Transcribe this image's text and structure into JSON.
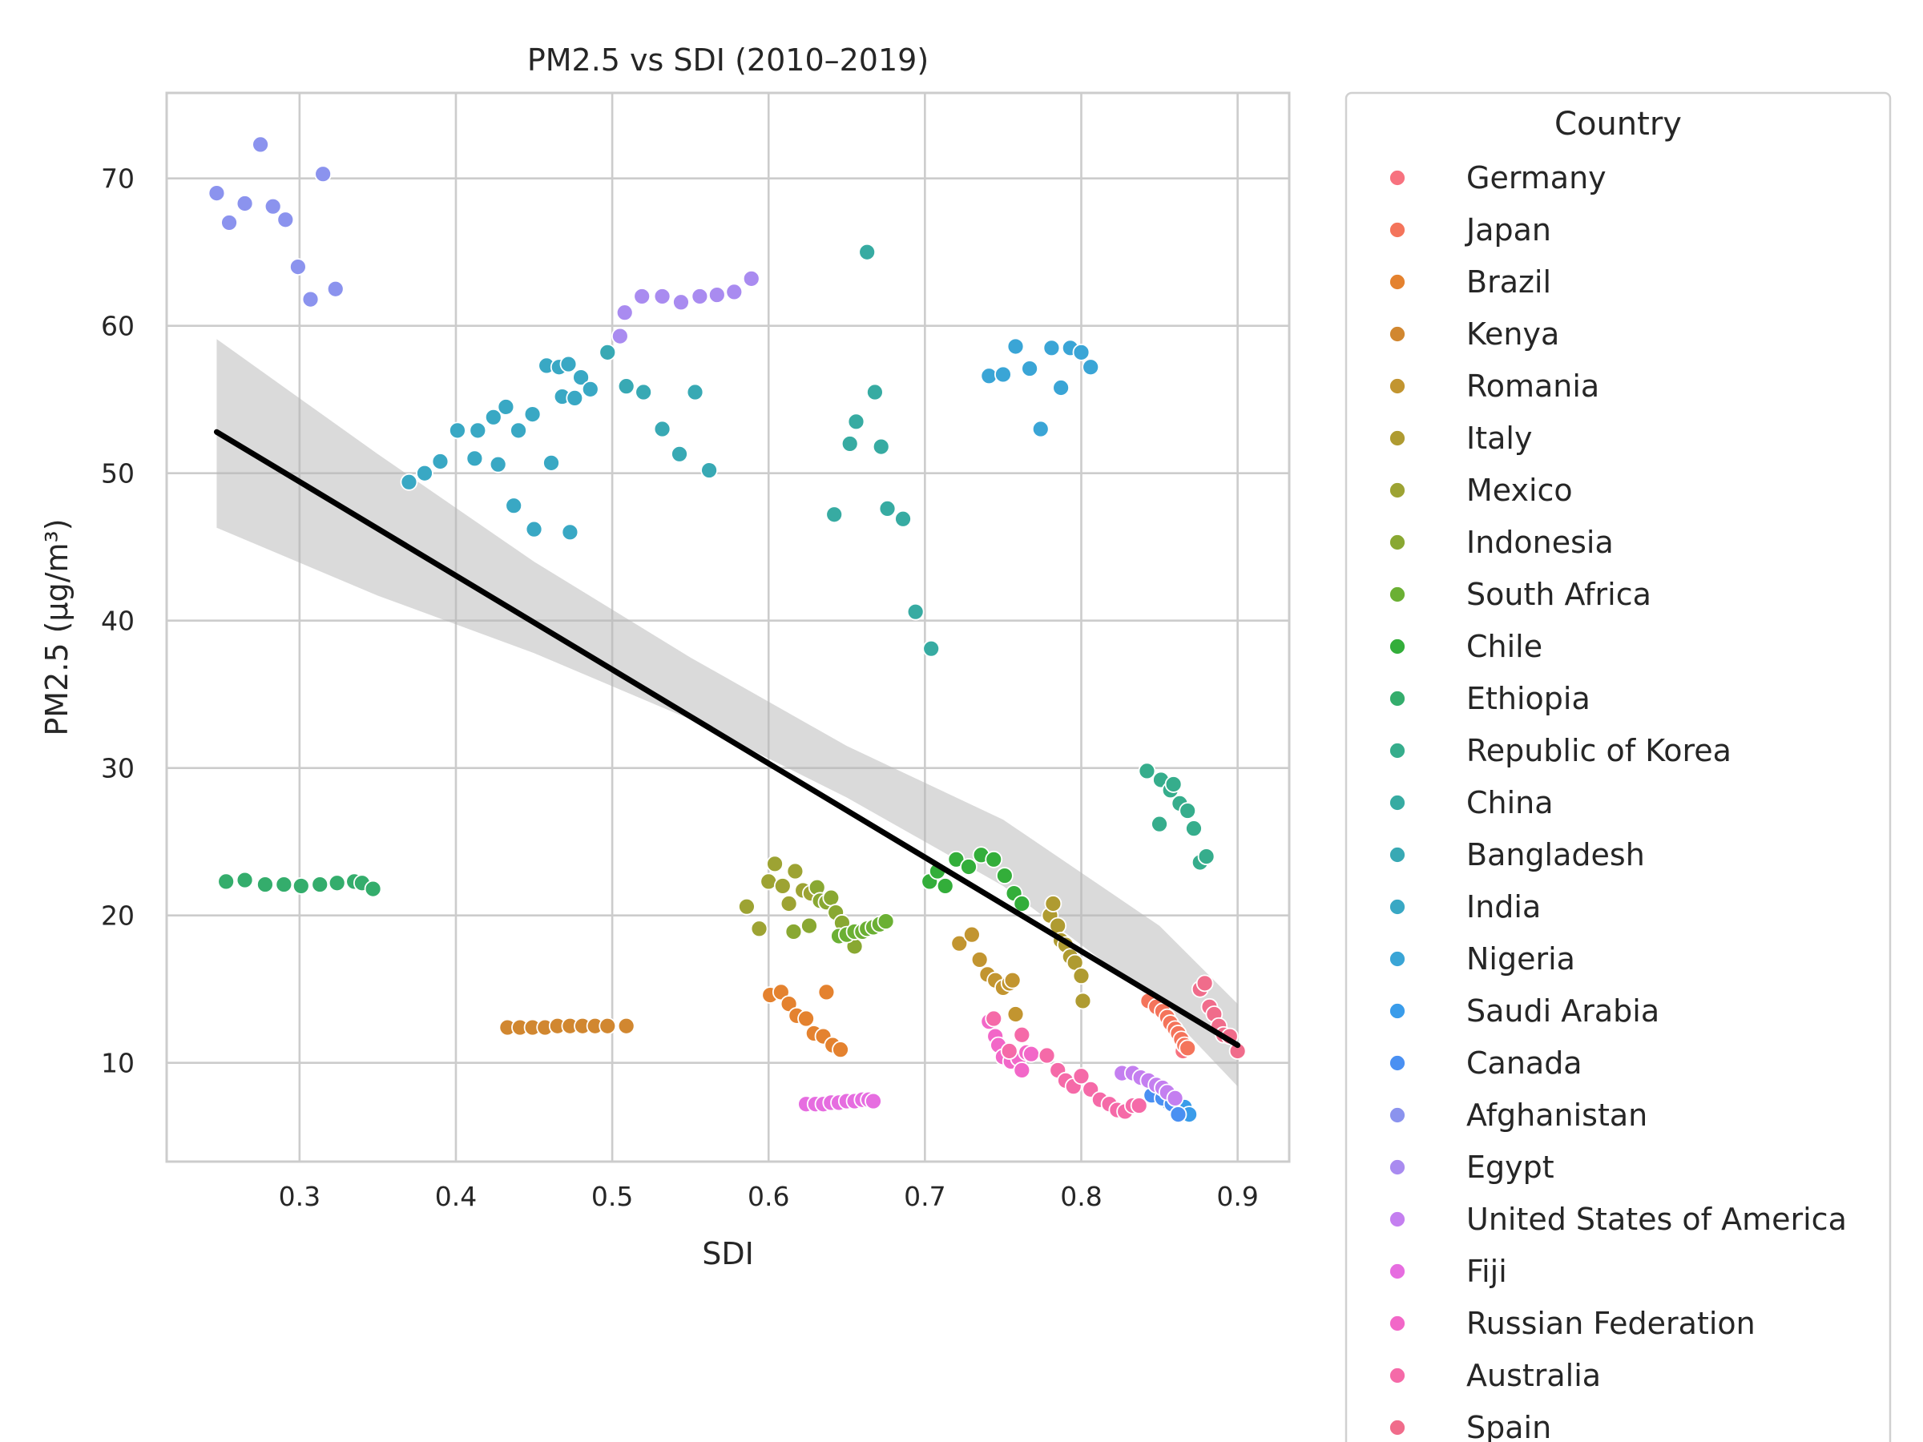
{
  "chart_data": {
    "type": "scatter",
    "title": "PM2.5 vs SDI (2010–2019)",
    "xlabel": "SDI",
    "ylabel": "PM2.5 (µg/m³)",
    "xlim": [
      0.215,
      0.933
    ],
    "ylim": [
      3.3,
      75.8
    ],
    "x_ticks": [
      0.3,
      0.4,
      0.5,
      0.6,
      0.7,
      0.8,
      0.9
    ],
    "x_tick_labels": [
      "0.3",
      "0.4",
      "0.5",
      "0.6",
      "0.7",
      "0.8",
      "0.9"
    ],
    "y_ticks": [
      10,
      20,
      30,
      40,
      50,
      60,
      70
    ],
    "y_tick_labels": [
      "10",
      "20",
      "30",
      "40",
      "50",
      "60",
      "70"
    ],
    "grid": true,
    "legend": {
      "title": "Country",
      "placement": "outside-right"
    },
    "regression": {
      "line": [
        [
          0.247,
          52.8
        ],
        [
          0.9,
          11.2
        ]
      ],
      "ci_band": [
        [
          0.247,
          46.3,
          59.1
        ],
        [
          0.35,
          41.7,
          51.3
        ],
        [
          0.45,
          37.8,
          44.0
        ],
        [
          0.55,
          33.3,
          37.5
        ],
        [
          0.65,
          28.0,
          31.5
        ],
        [
          0.75,
          22.0,
          26.5
        ],
        [
          0.85,
          14.0,
          19.3
        ],
        [
          0.9,
          8.4,
          14.0
        ]
      ]
    },
    "series": [
      {
        "name": "Germany",
        "color": "#f7727f",
        "points": [
          [
            0.865,
            10.8
          ],
          [
            0.868,
            11.0
          ]
        ]
      },
      {
        "name": "Japan",
        "color": "#f4745b",
        "points": [
          [
            0.843,
            14.2
          ],
          [
            0.848,
            13.8
          ],
          [
            0.852,
            13.5
          ],
          [
            0.855,
            13.1
          ],
          [
            0.857,
            12.7
          ],
          [
            0.86,
            12.3
          ],
          [
            0.862,
            12.0
          ],
          [
            0.864,
            11.6
          ],
          [
            0.866,
            11.2
          ],
          [
            0.868,
            11.0
          ]
        ]
      },
      {
        "name": "Brazil",
        "color": "#e4822f",
        "points": [
          [
            0.601,
            14.6
          ],
          [
            0.608,
            14.8
          ],
          [
            0.613,
            14.0
          ],
          [
            0.618,
            13.2
          ],
          [
            0.624,
            13.0
          ],
          [
            0.629,
            12.0
          ],
          [
            0.635,
            11.8
          ],
          [
            0.637,
            14.8
          ],
          [
            0.641,
            11.2
          ],
          [
            0.646,
            10.9
          ]
        ]
      },
      {
        "name": "Kenya",
        "color": "#d18730",
        "points": [
          [
            0.433,
            12.4
          ],
          [
            0.441,
            12.4
          ],
          [
            0.449,
            12.4
          ],
          [
            0.457,
            12.4
          ],
          [
            0.465,
            12.5
          ],
          [
            0.473,
            12.5
          ],
          [
            0.481,
            12.5
          ],
          [
            0.489,
            12.5
          ],
          [
            0.497,
            12.5
          ],
          [
            0.509,
            12.5
          ]
        ]
      },
      {
        "name": "Romania",
        "color": "#c29530",
        "points": [
          [
            0.722,
            18.1
          ],
          [
            0.73,
            18.7
          ],
          [
            0.735,
            17.0
          ],
          [
            0.74,
            16.0
          ],
          [
            0.745,
            15.6
          ],
          [
            0.75,
            15.1
          ],
          [
            0.754,
            15.4
          ],
          [
            0.756,
            15.6
          ],
          [
            0.758,
            13.3
          ]
        ]
      },
      {
        "name": "Italy",
        "color": "#af9b31",
        "points": [
          [
            0.78,
            20.0
          ],
          [
            0.782,
            20.8
          ],
          [
            0.785,
            19.3
          ],
          [
            0.787,
            18.3
          ],
          [
            0.79,
            18.0
          ],
          [
            0.793,
            17.2
          ],
          [
            0.796,
            16.8
          ],
          [
            0.8,
            15.9
          ],
          [
            0.801,
            14.2
          ]
        ]
      },
      {
        "name": "Mexico",
        "color": "#9da333",
        "points": [
          [
            0.586,
            20.6
          ],
          [
            0.594,
            19.1
          ],
          [
            0.6,
            22.3
          ],
          [
            0.604,
            23.5
          ],
          [
            0.609,
            22.0
          ],
          [
            0.613,
            20.8
          ],
          [
            0.617,
            23.0
          ],
          [
            0.622,
            21.7
          ],
          [
            0.627,
            21.5
          ]
        ]
      },
      {
        "name": "Indonesia",
        "color": "#89a832",
        "points": [
          [
            0.616,
            18.9
          ],
          [
            0.626,
            19.3
          ],
          [
            0.631,
            21.9
          ],
          [
            0.633,
            21.0
          ],
          [
            0.637,
            20.9
          ],
          [
            0.64,
            21.2
          ],
          [
            0.643,
            20.2
          ],
          [
            0.647,
            19.5
          ],
          [
            0.651,
            18.6
          ],
          [
            0.655,
            17.9
          ]
        ]
      },
      {
        "name": "South Africa",
        "color": "#6bb034",
        "points": [
          [
            0.645,
            18.6
          ],
          [
            0.65,
            18.7
          ],
          [
            0.655,
            18.9
          ],
          [
            0.66,
            18.9
          ],
          [
            0.663,
            19.1
          ],
          [
            0.667,
            19.2
          ],
          [
            0.671,
            19.4
          ],
          [
            0.675,
            19.6
          ]
        ]
      },
      {
        "name": "Chile",
        "color": "#33ae3a",
        "points": [
          [
            0.703,
            22.3
          ],
          [
            0.708,
            23.0
          ],
          [
            0.713,
            22.0
          ],
          [
            0.72,
            23.8
          ],
          [
            0.728,
            23.3
          ],
          [
            0.736,
            24.1
          ],
          [
            0.744,
            23.8
          ],
          [
            0.751,
            22.7
          ],
          [
            0.757,
            21.5
          ],
          [
            0.762,
            20.8
          ]
        ]
      },
      {
        "name": "Ethiopia",
        "color": "#34ad6c",
        "points": [
          [
            0.253,
            22.3
          ],
          [
            0.265,
            22.4
          ],
          [
            0.278,
            22.1
          ],
          [
            0.29,
            22.1
          ],
          [
            0.301,
            22.0
          ],
          [
            0.313,
            22.1
          ],
          [
            0.324,
            22.2
          ],
          [
            0.335,
            22.3
          ],
          [
            0.34,
            22.2
          ],
          [
            0.347,
            21.8
          ]
        ]
      },
      {
        "name": "Republic of Korea",
        "color": "#36ad8c",
        "points": [
          [
            0.842,
            29.8
          ],
          [
            0.85,
            26.2
          ],
          [
            0.851,
            29.2
          ],
          [
            0.857,
            28.5
          ],
          [
            0.859,
            28.9
          ],
          [
            0.863,
            27.6
          ],
          [
            0.868,
            27.1
          ],
          [
            0.872,
            25.9
          ],
          [
            0.876,
            23.6
          ],
          [
            0.88,
            24.0
          ]
        ]
      },
      {
        "name": "China",
        "color": "#37aba2",
        "points": [
          [
            0.642,
            47.2
          ],
          [
            0.652,
            52.0
          ],
          [
            0.656,
            53.5
          ],
          [
            0.663,
            65.0
          ],
          [
            0.668,
            55.5
          ],
          [
            0.672,
            51.8
          ],
          [
            0.676,
            47.6
          ],
          [
            0.686,
            46.9
          ],
          [
            0.694,
            40.6
          ],
          [
            0.704,
            38.1
          ]
        ]
      },
      {
        "name": "Bangladesh",
        "color": "#38a9b4",
        "points": [
          [
            0.497,
            58.2
          ],
          [
            0.509,
            55.9
          ],
          [
            0.52,
            55.5
          ],
          [
            0.532,
            53.0
          ],
          [
            0.543,
            51.3
          ],
          [
            0.553,
            55.5
          ],
          [
            0.562,
            50.2
          ]
        ]
      },
      {
        "name": "India",
        "color": "#39a8c4",
        "points": [
          [
            0.37,
            49.4
          ],
          [
            0.38,
            50.0
          ],
          [
            0.39,
            50.8
          ],
          [
            0.401,
            52.9
          ],
          [
            0.412,
            51.0
          ],
          [
            0.414,
            52.9
          ],
          [
            0.424,
            53.8
          ],
          [
            0.427,
            50.6
          ],
          [
            0.432,
            54.5
          ],
          [
            0.437,
            47.8
          ],
          [
            0.44,
            52.9
          ],
          [
            0.449,
            54.0
          ],
          [
            0.45,
            46.2
          ],
          [
            0.458,
            57.3
          ],
          [
            0.461,
            50.7
          ],
          [
            0.466,
            57.2
          ],
          [
            0.468,
            55.2
          ],
          [
            0.472,
            57.4
          ],
          [
            0.473,
            46.0
          ],
          [
            0.476,
            55.1
          ],
          [
            0.48,
            56.5
          ],
          [
            0.486,
            55.7
          ]
        ]
      },
      {
        "name": "Nigeria",
        "color": "#3aa5d6",
        "points": [
          [
            0.741,
            56.6
          ],
          [
            0.75,
            56.7
          ],
          [
            0.758,
            58.6
          ],
          [
            0.767,
            57.1
          ],
          [
            0.774,
            53.0
          ],
          [
            0.781,
            58.5
          ],
          [
            0.787,
            55.8
          ],
          [
            0.793,
            58.5
          ],
          [
            0.8,
            58.2
          ],
          [
            0.806,
            57.2
          ]
        ]
      },
      {
        "name": "Saudi Arabia",
        "color": "#3a9cea",
        "points": [
          [
            0.848,
            7.8
          ],
          [
            0.852,
            7.6
          ],
          [
            0.856,
            7.3
          ],
          [
            0.86,
            7.0
          ],
          [
            0.866,
            7.0
          ],
          [
            0.869,
            6.5
          ]
        ]
      },
      {
        "name": "Canada",
        "color": "#4a90f2",
        "points": [
          [
            0.845,
            7.8
          ],
          [
            0.852,
            7.6
          ],
          [
            0.858,
            7.2
          ],
          [
            0.862,
            6.5
          ]
        ]
      },
      {
        "name": "Afghanistan",
        "color": "#8b93ee",
        "points": [
          [
            0.247,
            69.0
          ],
          [
            0.255,
            67.0
          ],
          [
            0.265,
            68.3
          ],
          [
            0.275,
            72.3
          ],
          [
            0.283,
            68.1
          ],
          [
            0.291,
            67.2
          ],
          [
            0.299,
            64.0
          ],
          [
            0.307,
            61.8
          ],
          [
            0.315,
            70.3
          ],
          [
            0.323,
            62.5
          ]
        ]
      },
      {
        "name": "Egypt",
        "color": "#a98bf0",
        "points": [
          [
            0.505,
            59.3
          ],
          [
            0.508,
            60.9
          ],
          [
            0.519,
            62.0
          ],
          [
            0.532,
            62.0
          ],
          [
            0.544,
            61.6
          ],
          [
            0.556,
            62.0
          ],
          [
            0.567,
            62.1
          ],
          [
            0.578,
            62.3
          ],
          [
            0.589,
            63.2
          ]
        ]
      },
      {
        "name": "United States of America",
        "color": "#c47ff0",
        "points": [
          [
            0.826,
            9.3
          ],
          [
            0.833,
            9.3
          ],
          [
            0.838,
            9.0
          ],
          [
            0.843,
            8.8
          ],
          [
            0.848,
            8.5
          ],
          [
            0.852,
            8.3
          ],
          [
            0.855,
            8.0
          ],
          [
            0.86,
            7.6
          ]
        ]
      },
      {
        "name": "Fiji",
        "color": "#e66de0",
        "points": [
          [
            0.624,
            7.2
          ],
          [
            0.63,
            7.2
          ],
          [
            0.635,
            7.2
          ],
          [
            0.64,
            7.3
          ],
          [
            0.645,
            7.3
          ],
          [
            0.65,
            7.4
          ],
          [
            0.655,
            7.4
          ],
          [
            0.66,
            7.5
          ],
          [
            0.664,
            7.5
          ],
          [
            0.667,
            7.4
          ]
        ]
      },
      {
        "name": "Russian Federation",
        "color": "#f267c8",
        "points": [
          [
            0.741,
            12.8
          ],
          [
            0.745,
            11.8
          ],
          [
            0.747,
            11.2
          ],
          [
            0.75,
            10.4
          ],
          [
            0.755,
            10.1
          ],
          [
            0.76,
            10.3
          ],
          [
            0.762,
            9.5
          ],
          [
            0.765,
            10.7
          ],
          [
            0.768,
            10.6
          ]
        ]
      },
      {
        "name": "Australia",
        "color": "#f56aa8",
        "points": [
          [
            0.744,
            13.0
          ],
          [
            0.754,
            10.8
          ],
          [
            0.762,
            11.9
          ],
          [
            0.778,
            10.5
          ],
          [
            0.785,
            9.5
          ],
          [
            0.79,
            8.8
          ],
          [
            0.795,
            8.4
          ],
          [
            0.8,
            9.1
          ],
          [
            0.806,
            8.2
          ],
          [
            0.812,
            7.5
          ],
          [
            0.818,
            7.2
          ],
          [
            0.823,
            6.8
          ],
          [
            0.828,
            6.7
          ],
          [
            0.833,
            7.1
          ],
          [
            0.837,
            7.1
          ]
        ]
      },
      {
        "name": "Spain",
        "color": "#f06c8b",
        "points": [
          [
            0.876,
            15.0
          ],
          [
            0.879,
            15.4
          ],
          [
            0.882,
            13.8
          ],
          [
            0.885,
            13.3
          ],
          [
            0.888,
            12.5
          ],
          [
            0.891,
            11.9
          ],
          [
            0.895,
            11.8
          ],
          [
            0.9,
            10.8
          ]
        ]
      }
    ]
  }
}
